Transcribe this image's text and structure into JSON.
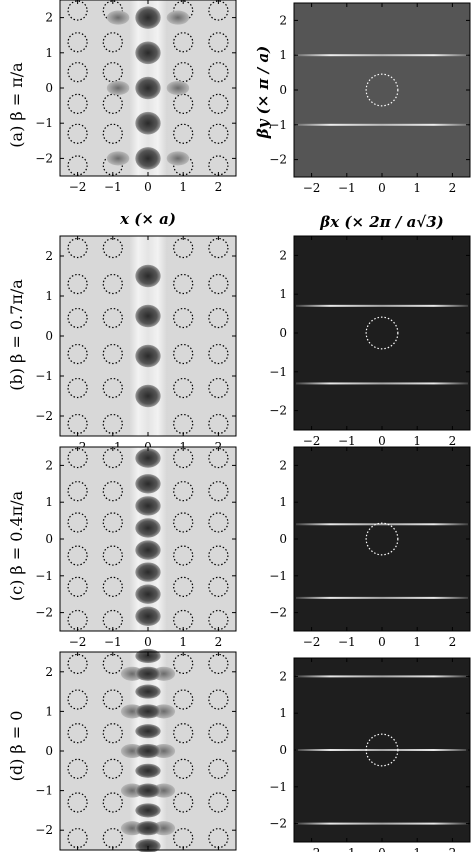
{
  "chart_data": [
    {
      "type": "heatmap",
      "panel": "(a)",
      "row_label": "(a)  β = π/a",
      "field_map": {
        "xlabel": "x (× a)",
        "x_ticks": [
          -2,
          -1,
          0,
          1,
          2
        ],
        "xlim": [
          -2.5,
          2.5
        ],
        "y_ticks": [
          -2,
          -1,
          0,
          1,
          2
        ],
        "ylim": [
          -2.5,
          2.5
        ],
        "mode_lobes_y": [
          2,
          1,
          0,
          -1,
          -2
        ],
        "side_lobes_x": [
          -0.85,
          0.85
        ],
        "side_lobe_rows": [
          2,
          0,
          -2
        ]
      },
      "spectrum_map": {
        "xlabel": "βx (× 2π / a√3)",
        "ylabel": "βy (× π / a)",
        "x_ticks": [
          -2,
          -1,
          0,
          1,
          2
        ],
        "xlim": [
          -2.5,
          2.5
        ],
        "y_ticks": [
          -2,
          -1,
          0,
          1,
          2
        ],
        "ylim": [
          -2.5,
          2.5
        ],
        "lines_y": [
          1,
          -1
        ],
        "circle_radius": 0.45
      }
    },
    {
      "type": "heatmap",
      "panel": "(b)",
      "row_label": "(b)  β = 0.7π/a",
      "field_map": {
        "x_ticks": [
          -2,
          -1,
          0,
          1,
          2
        ],
        "xlim": [
          -2.5,
          2.5
        ],
        "y_ticks": [
          -2,
          -1,
          0,
          1,
          2
        ],
        "ylim": [
          -2.5,
          2.5
        ],
        "mode_lobes_y": [
          1.5,
          0.5,
          -0.5,
          -1.5
        ],
        "side_lobes_x": [],
        "side_lobe_rows": []
      },
      "spectrum_map": {
        "x_ticks": [
          -2,
          -1,
          0,
          1,
          2
        ],
        "xlim": [
          -2.5,
          2.5
        ],
        "y_ticks": [
          -2,
          -1,
          0,
          1,
          2
        ],
        "ylim": [
          -2.5,
          2.5
        ],
        "lines_y": [
          0.7,
          -1.3
        ],
        "circle_radius": 0.45
      }
    },
    {
      "type": "heatmap",
      "panel": "(c)",
      "row_label": "(c)  β = 0.4π/a",
      "field_map": {
        "x_ticks": [
          -2,
          -1,
          0,
          1,
          2
        ],
        "xlim": [
          -2.5,
          2.5
        ],
        "y_ticks": [
          -2,
          -1,
          0,
          1,
          2
        ],
        "ylim": [
          -2.5,
          2.5
        ],
        "mode_lobes_y": [
          2.2,
          1.5,
          0.9,
          0.3,
          -0.3,
          -0.9,
          -1.5,
          -2.1
        ],
        "side_lobes_x": [],
        "side_lobe_rows": []
      },
      "spectrum_map": {
        "x_ticks": [
          -2,
          -1,
          0,
          1,
          2
        ],
        "xlim": [
          -2.5,
          2.5
        ],
        "y_ticks": [
          -2,
          -1,
          0,
          1,
          2
        ],
        "ylim": [
          -2.5,
          2.5
        ],
        "lines_y": [
          0.4,
          -1.6
        ],
        "circle_radius": 0.45
      }
    },
    {
      "type": "heatmap",
      "panel": "(d)",
      "row_label": "(d)  β = 0",
      "field_map": {
        "x_ticks": [
          -2,
          -1,
          0,
          1,
          2
        ],
        "xlim": [
          -2.5,
          2.5
        ],
        "y_ticks": [
          -2,
          -1,
          0,
          1,
          2
        ],
        "ylim": [
          -2.5,
          2.5
        ],
        "mode_lobes_y": [
          2.4,
          1.95,
          1.5,
          1.0,
          0.5,
          0.0,
          -0.5,
          -1.0,
          -1.5,
          -1.95,
          -2.4
        ],
        "side_lobes_x": [
          -0.45,
          0.45
        ],
        "side_lobe_rows": [
          1.95,
          1.0,
          0.0,
          -1.0,
          -1.95
        ]
      },
      "spectrum_map": {
        "x_ticks": [
          -2,
          -1,
          0,
          1,
          2
        ],
        "xlim": [
          -2.5,
          2.5
        ],
        "y_ticks": [
          -2,
          -1,
          0,
          1,
          2
        ],
        "ylim": [
          -2.5,
          2.5
        ],
        "lines_y": [
          2,
          0,
          -2
        ],
        "circle_radius": 0.45
      }
    }
  ],
  "labels": {
    "row_a": "(a)  β = π/a",
    "row_b": "(b)  β = 0.7π/a",
    "row_c": "(c)  β = 0.4π/a",
    "row_d": "(d)  β = 0",
    "field_xlabel": "x (× a)",
    "spec_xlabel": "βx (× 2π / a√3)",
    "spec_ylabel": "βy (× π / a)"
  },
  "colors": {
    "field_background": "#d8d8d8",
    "field_channel": "#efefef",
    "field_lobe": "#3c3c3c",
    "spectrum_background_a": "#555555",
    "spectrum_background": "#1e1e1e",
    "spectrum_line": "#ffffff",
    "hole_outline": "#000000",
    "circle_outline": "#ffffff"
  }
}
